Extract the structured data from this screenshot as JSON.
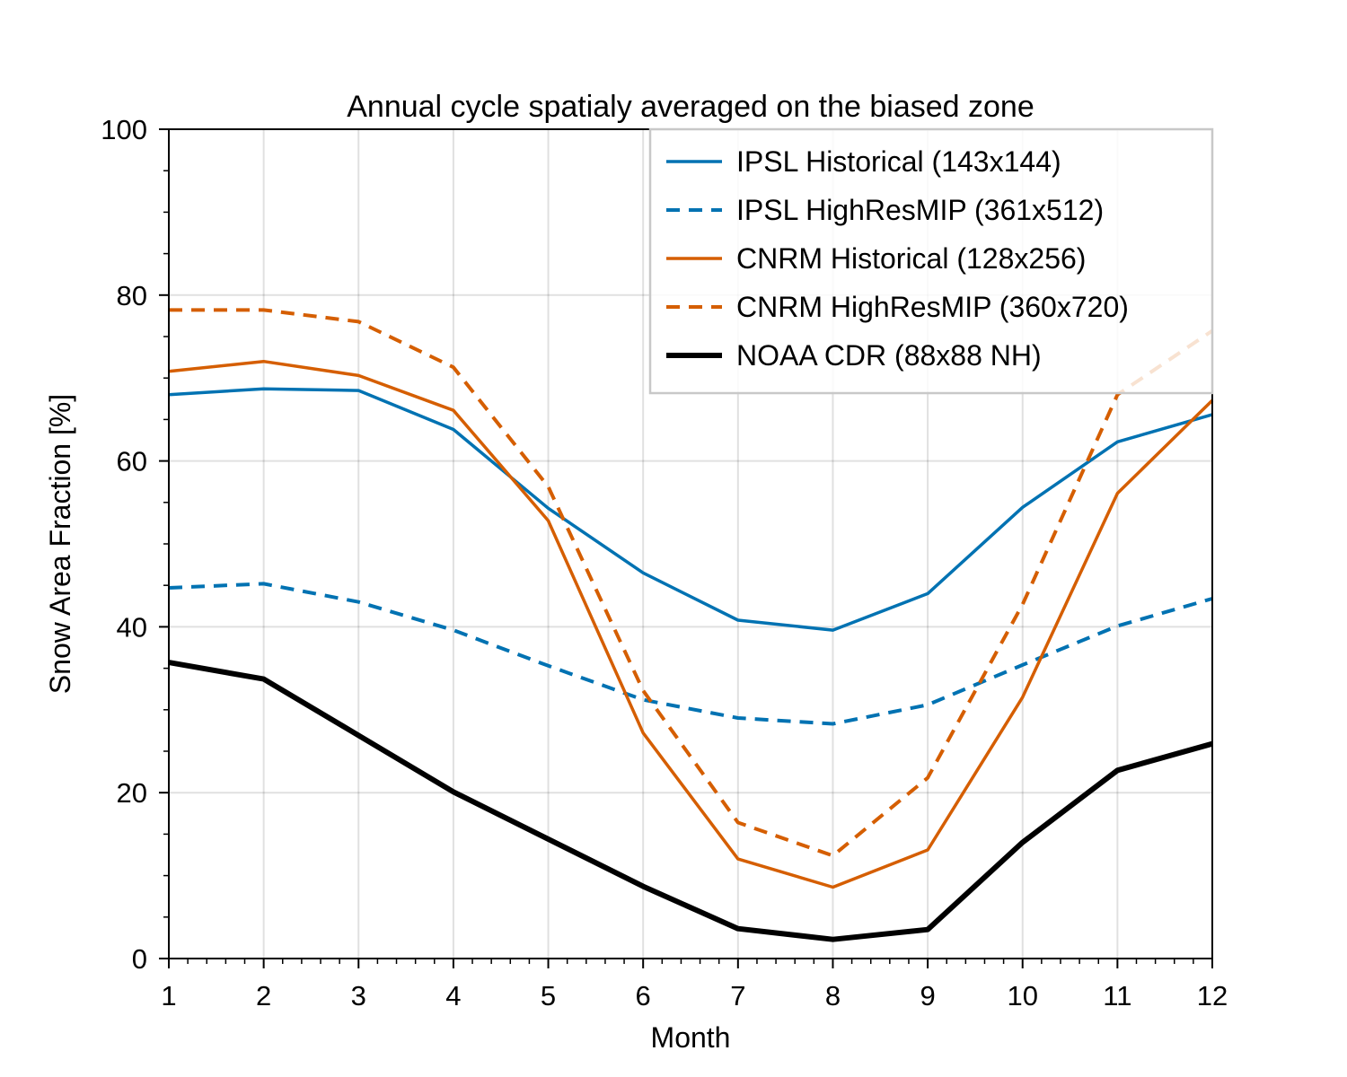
{
  "chart_data": {
    "type": "line",
    "title": "Annual cycle spatialy averaged on the biased zone",
    "xlabel": "Month",
    "ylabel": "Snow Area Fraction [%]",
    "x": [
      1,
      2,
      3,
      4,
      5,
      6,
      7,
      8,
      9,
      10,
      11,
      12
    ],
    "xlim": [
      1,
      12
    ],
    "ylim": [
      0,
      100
    ],
    "xticks": [
      "1",
      "2",
      "3",
      "4",
      "5",
      "6",
      "7",
      "8",
      "9",
      "10",
      "11",
      "12"
    ],
    "yticks": [
      "0",
      "20",
      "40",
      "60",
      "80",
      "100"
    ],
    "grid": true,
    "legend_position": "top-right",
    "series": [
      {
        "name": "IPSL Historical (143x144)",
        "color": "#0072b2",
        "style": "solid",
        "values": [
          68.0,
          68.7,
          68.5,
          63.8,
          54.3,
          46.5,
          40.8,
          39.6,
          44.0,
          54.4,
          62.3,
          65.6
        ]
      },
      {
        "name": "IPSL HighResMIP (361x512)",
        "color": "#0072b2",
        "style": "dashed",
        "values": [
          44.7,
          45.2,
          43.0,
          39.6,
          35.3,
          31.2,
          29.0,
          28.3,
          30.6,
          35.4,
          40.1,
          43.4
        ]
      },
      {
        "name": "CNRM Historical (128x256)",
        "color": "#d55e00",
        "style": "solid",
        "values": [
          70.8,
          72.0,
          70.3,
          66.1,
          52.8,
          27.2,
          12.0,
          8.6,
          13.1,
          31.5,
          56.1,
          67.3
        ]
      },
      {
        "name": "CNRM HighResMIP (360x720)",
        "color": "#d55e00",
        "style": "dashed",
        "values": [
          78.2,
          78.2,
          76.8,
          71.3,
          56.9,
          32.3,
          16.4,
          12.4,
          21.8,
          42.7,
          68.0,
          75.7
        ]
      },
      {
        "name": "NOAA CDR (88x88 NH)",
        "color": "#000000",
        "style": "thick",
        "values": [
          35.7,
          33.7,
          26.9,
          20.1,
          14.4,
          8.7,
          3.6,
          2.3,
          3.5,
          14.0,
          22.7,
          25.9
        ]
      }
    ]
  }
}
